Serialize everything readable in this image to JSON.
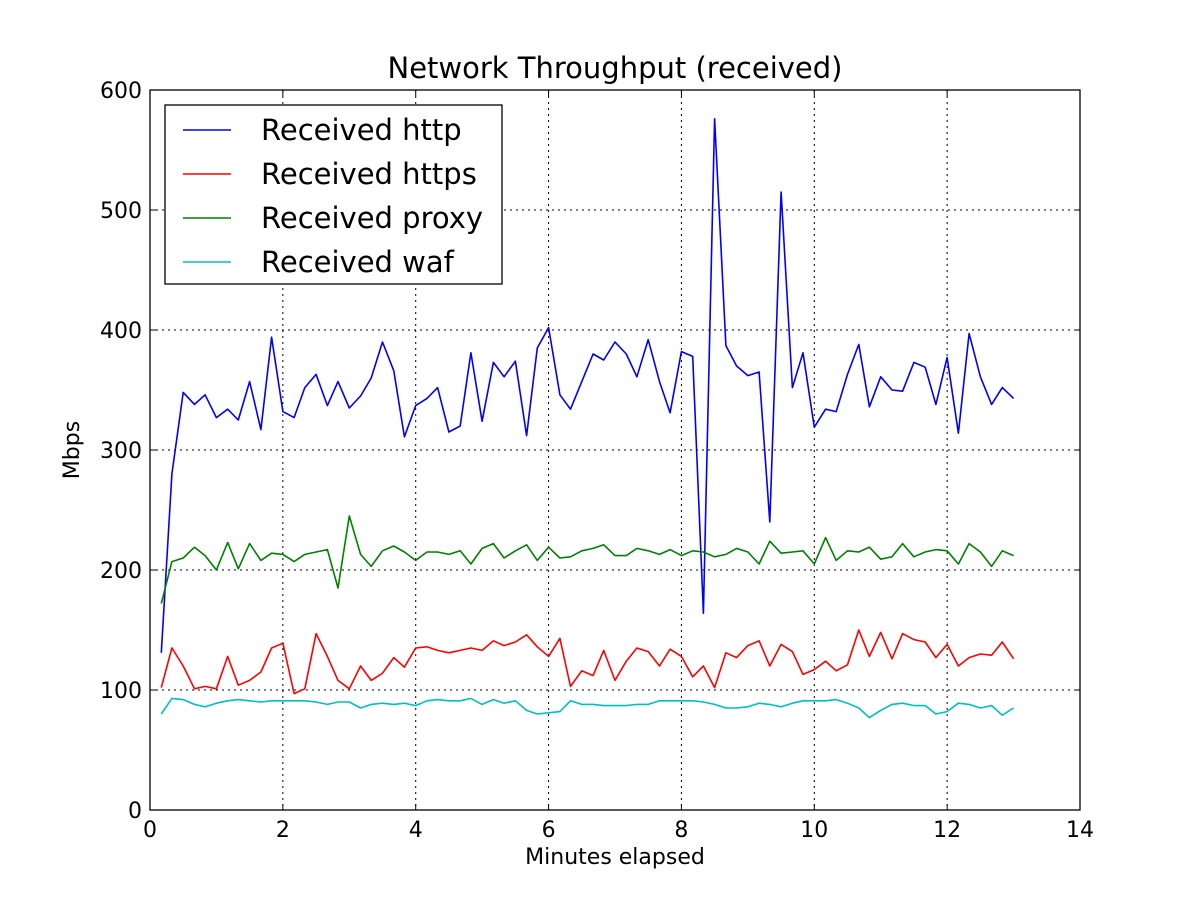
{
  "chart_data": {
    "type": "line",
    "title": "Network Throughput (received)",
    "xlabel": "Minutes elapsed",
    "ylabel": "Mbps",
    "xlim": [
      0,
      14
    ],
    "ylim": [
      0,
      600
    ],
    "xticks": [
      0,
      2,
      4,
      6,
      8,
      10,
      12,
      14
    ],
    "yticks": [
      0,
      100,
      200,
      300,
      400,
      500,
      600
    ],
    "grid": true,
    "legend_position": "top-left",
    "series": [
      {
        "name": "Received http",
        "color": "#0000ff",
        "x": [
          0.17,
          0.33,
          0.5,
          0.67,
          0.83,
          1.0,
          1.17,
          1.33,
          1.5,
          1.67,
          1.83,
          2.0,
          2.17,
          2.33,
          2.5,
          2.67,
          2.83,
          3.0,
          3.17,
          3.33,
          3.5,
          3.67,
          3.83,
          4.0,
          4.17,
          4.33,
          4.5,
          4.67,
          4.83,
          5.0,
          5.17,
          5.33,
          5.5,
          5.67,
          5.83,
          6.0,
          6.17,
          6.33,
          6.5,
          6.67,
          6.83,
          7.0,
          7.17,
          7.33,
          7.5,
          7.67,
          7.83,
          8.0,
          8.17,
          8.33,
          8.5,
          8.67,
          8.83,
          9.0,
          9.17,
          9.33,
          9.5,
          9.67,
          9.83,
          10.0,
          10.17,
          10.33,
          10.5,
          10.67,
          10.83,
          11.0,
          11.17,
          11.33,
          11.5,
          11.67,
          11.83,
          12.0,
          12.17,
          12.33,
          12.5,
          12.67,
          12.83,
          13.0
        ],
        "y": [
          131,
          280,
          348,
          338,
          346,
          327,
          334,
          325,
          357,
          317,
          394,
          332,
          327,
          352,
          363,
          337,
          357,
          335,
          345,
          360,
          390,
          366,
          311,
          337,
          343,
          352,
          315,
          320,
          381,
          324,
          373,
          361,
          374,
          312,
          385,
          402,
          346,
          334,
          357,
          380,
          375,
          390,
          380,
          361,
          392,
          357,
          331,
          382,
          378,
          164,
          576,
          387,
          370,
          362,
          365,
          240,
          515,
          352,
          381,
          319,
          334,
          332,
          363,
          388,
          336,
          361,
          350,
          349,
          373,
          369,
          338,
          377,
          314,
          397,
          361,
          338,
          352,
          343
        ]
      },
      {
        "name": "Received https",
        "color": "#ff0000",
        "x": [
          0.17,
          0.33,
          0.5,
          0.67,
          0.83,
          1.0,
          1.17,
          1.33,
          1.5,
          1.67,
          1.83,
          2.0,
          2.17,
          2.33,
          2.5,
          2.67,
          2.83,
          3.0,
          3.17,
          3.33,
          3.5,
          3.67,
          3.83,
          4.0,
          4.17,
          4.33,
          4.5,
          4.67,
          4.83,
          5.0,
          5.17,
          5.33,
          5.5,
          5.67,
          5.83,
          6.0,
          6.17,
          6.33,
          6.5,
          6.67,
          6.83,
          7.0,
          7.17,
          7.33,
          7.5,
          7.67,
          7.83,
          8.0,
          8.17,
          8.33,
          8.5,
          8.67,
          8.83,
          9.0,
          9.17,
          9.33,
          9.5,
          9.67,
          9.83,
          10.0,
          10.17,
          10.33,
          10.5,
          10.67,
          10.83,
          11.0,
          11.17,
          11.33,
          11.5,
          11.67,
          11.83,
          12.0,
          12.17,
          12.33,
          12.5,
          12.67,
          12.83,
          13.0
        ],
        "y": [
          102,
          135,
          120,
          101,
          103,
          101,
          128,
          104,
          108,
          115,
          135,
          139,
          97,
          101,
          147,
          128,
          108,
          101,
          120,
          108,
          114,
          127,
          119,
          135,
          136,
          133,
          131,
          133,
          135,
          133,
          141,
          137,
          140,
          146,
          136,
          128,
          143,
          103,
          116,
          112,
          133,
          108,
          124,
          135,
          132,
          120,
          134,
          128,
          111,
          120,
          102,
          131,
          127,
          137,
          141,
          120,
          138,
          132,
          113,
          117,
          124,
          116,
          121,
          150,
          128,
          148,
          126,
          147,
          142,
          140,
          127,
          138,
          120,
          127,
          130,
          129,
          140,
          126
        ]
      },
      {
        "name": "Received proxy",
        "color": "#008000",
        "x": [
          0.17,
          0.33,
          0.5,
          0.67,
          0.83,
          1.0,
          1.17,
          1.33,
          1.5,
          1.67,
          1.83,
          2.0,
          2.17,
          2.33,
          2.5,
          2.67,
          2.83,
          3.0,
          3.17,
          3.33,
          3.5,
          3.67,
          3.83,
          4.0,
          4.17,
          4.33,
          4.5,
          4.67,
          4.83,
          5.0,
          5.17,
          5.33,
          5.5,
          5.67,
          5.83,
          6.0,
          6.17,
          6.33,
          6.5,
          6.67,
          6.83,
          7.0,
          7.17,
          7.33,
          7.5,
          7.67,
          7.83,
          8.0,
          8.17,
          8.33,
          8.5,
          8.67,
          8.83,
          9.0,
          9.17,
          9.33,
          9.5,
          9.67,
          9.83,
          10.0,
          10.17,
          10.33,
          10.5,
          10.67,
          10.83,
          11.0,
          11.17,
          11.33,
          11.5,
          11.67,
          11.83,
          12.0,
          12.17,
          12.33,
          12.5,
          12.67,
          12.83,
          13.0
        ],
        "y": [
          172,
          207,
          210,
          219,
          212,
          200,
          223,
          201,
          222,
          208,
          214,
          213,
          207,
          213,
          215,
          217,
          185,
          245,
          213,
          203,
          216,
          220,
          215,
          208,
          215,
          215,
          213,
          216,
          205,
          218,
          222,
          210,
          216,
          221,
          208,
          219,
          210,
          211,
          216,
          218,
          221,
          212,
          212,
          218,
          216,
          213,
          217,
          212,
          216,
          215,
          211,
          213,
          218,
          215,
          205,
          224,
          214,
          215,
          216,
          205,
          227,
          208,
          216,
          215,
          219,
          209,
          211,
          222,
          211,
          215,
          217,
          216,
          205,
          222,
          215,
          203,
          216,
          212
        ]
      },
      {
        "name": "Received waf",
        "color": "#00bfbf",
        "x": [
          0.17,
          0.33,
          0.5,
          0.67,
          0.83,
          1.0,
          1.17,
          1.33,
          1.5,
          1.67,
          1.83,
          2.0,
          2.17,
          2.33,
          2.5,
          2.67,
          2.83,
          3.0,
          3.17,
          3.33,
          3.5,
          3.67,
          3.83,
          4.0,
          4.17,
          4.33,
          4.5,
          4.67,
          4.83,
          5.0,
          5.17,
          5.33,
          5.5,
          5.67,
          5.83,
          6.0,
          6.17,
          6.33,
          6.5,
          6.67,
          6.83,
          7.0,
          7.17,
          7.33,
          7.5,
          7.67,
          7.83,
          8.0,
          8.17,
          8.33,
          8.5,
          8.67,
          8.83,
          9.0,
          9.17,
          9.33,
          9.5,
          9.67,
          9.83,
          10.0,
          10.17,
          10.33,
          10.5,
          10.67,
          10.83,
          11.0,
          11.17,
          11.33,
          11.5,
          11.67,
          11.83,
          12.0,
          12.17,
          12.33,
          12.5,
          12.67,
          12.83,
          13.0
        ],
        "y": [
          80,
          93,
          92,
          88,
          86,
          89,
          91,
          92,
          91,
          90,
          91,
          91,
          91,
          91,
          90,
          88,
          90,
          90,
          85,
          88,
          89,
          88,
          89,
          87,
          91,
          92,
          91,
          91,
          93,
          88,
          92,
          89,
          91,
          83,
          80,
          81,
          82,
          91,
          88,
          88,
          87,
          87,
          87,
          88,
          88,
          91,
          91,
          91,
          91,
          90,
          88,
          85,
          85,
          86,
          89,
          88,
          86,
          89,
          91,
          91,
          91,
          92,
          89,
          85,
          77,
          83,
          88,
          89,
          87,
          87,
          80,
          82,
          89,
          88,
          85,
          87,
          79,
          85
        ]
      }
    ]
  }
}
